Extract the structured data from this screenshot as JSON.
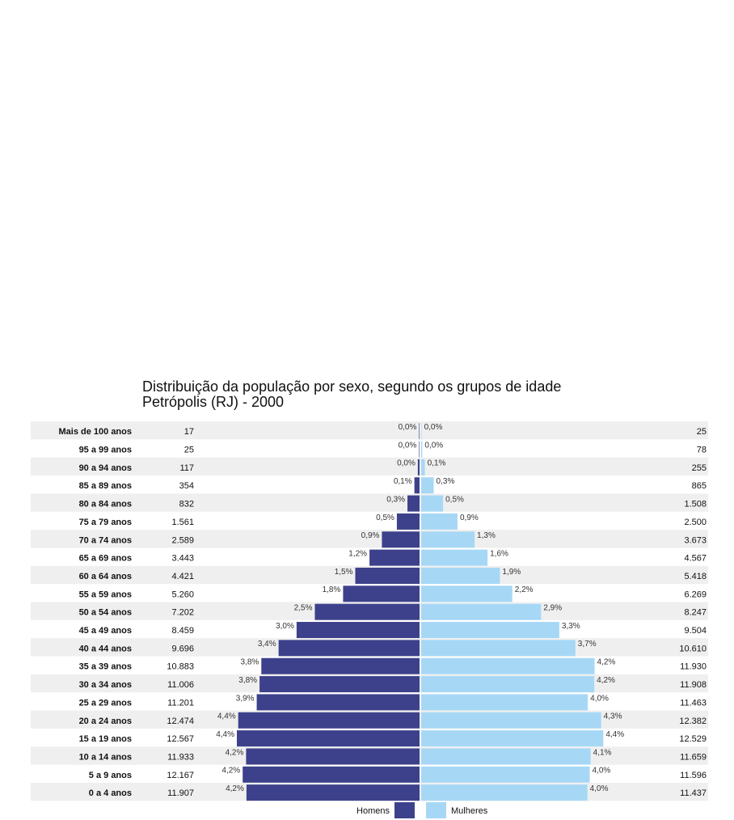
{
  "chart_data": {
    "type": "bar",
    "orientation": "horizontal",
    "title": "Distribuição da população por sexo, segundo os grupos de idade",
    "subtitle": "Petrópolis (RJ) - 2000",
    "categories": [
      "Mais de 100 anos",
      "95 a 99 anos",
      "90 a 94 anos",
      "85 a 89 anos",
      "80 a 84 anos",
      "75 a 79 anos",
      "70 a 74 anos",
      "65 a 69 anos",
      "60 a 64 anos",
      "55 a 59 anos",
      "50 a 54 anos",
      "45 a 49 anos",
      "40 a 44 anos",
      "35 a 39 anos",
      "30 a 34 anos",
      "25 a 29 anos",
      "20 a 24 anos",
      "15 a 19 anos",
      "10 a 14 anos",
      "5 a 9 anos",
      "0 a 4 anos"
    ],
    "series": [
      {
        "name": "Homens",
        "color": "#3d418b",
        "values": [
          "17",
          "25",
          "117",
          "354",
          "832",
          "1.561",
          "2.589",
          "3.443",
          "4.421",
          "5.260",
          "7.202",
          "8.459",
          "9.696",
          "10.883",
          "11.006",
          "11.201",
          "12.474",
          "12.567",
          "11.933",
          "12.167",
          "11.907"
        ],
        "percent_labels": [
          "0,0%",
          "0,0%",
          "0,0%",
          "0,1%",
          "0,3%",
          "0,5%",
          "0,9%",
          "1,2%",
          "1,5%",
          "1,8%",
          "2,5%",
          "3,0%",
          "3,4%",
          "3,8%",
          "3,8%",
          "3,9%",
          "4,4%",
          "4,4%",
          "4,2%",
          "4,2%",
          "4,2%"
        ]
      },
      {
        "name": "Mulheres",
        "color": "#a6d8f6",
        "values": [
          "25",
          "78",
          "255",
          "865",
          "1.508",
          "2.500",
          "3.673",
          "4.567",
          "5.418",
          "6.269",
          "8.247",
          "9.504",
          "10.610",
          "11.930",
          "11.908",
          "11.463",
          "12.382",
          "12.529",
          "11.659",
          "11.596",
          "11.437"
        ],
        "percent_labels": [
          "0,0%",
          "0,0%",
          "0,1%",
          "0,3%",
          "0,5%",
          "0,9%",
          "1,3%",
          "1,6%",
          "1,9%",
          "2,2%",
          "2,9%",
          "3,3%",
          "3,7%",
          "4,2%",
          "4,2%",
          "4,0%",
          "4,3%",
          "4,4%",
          "4,1%",
          "4,0%",
          "4,0%"
        ]
      }
    ],
    "row_stripe_color": "#efefef",
    "legend": "bottom"
  }
}
